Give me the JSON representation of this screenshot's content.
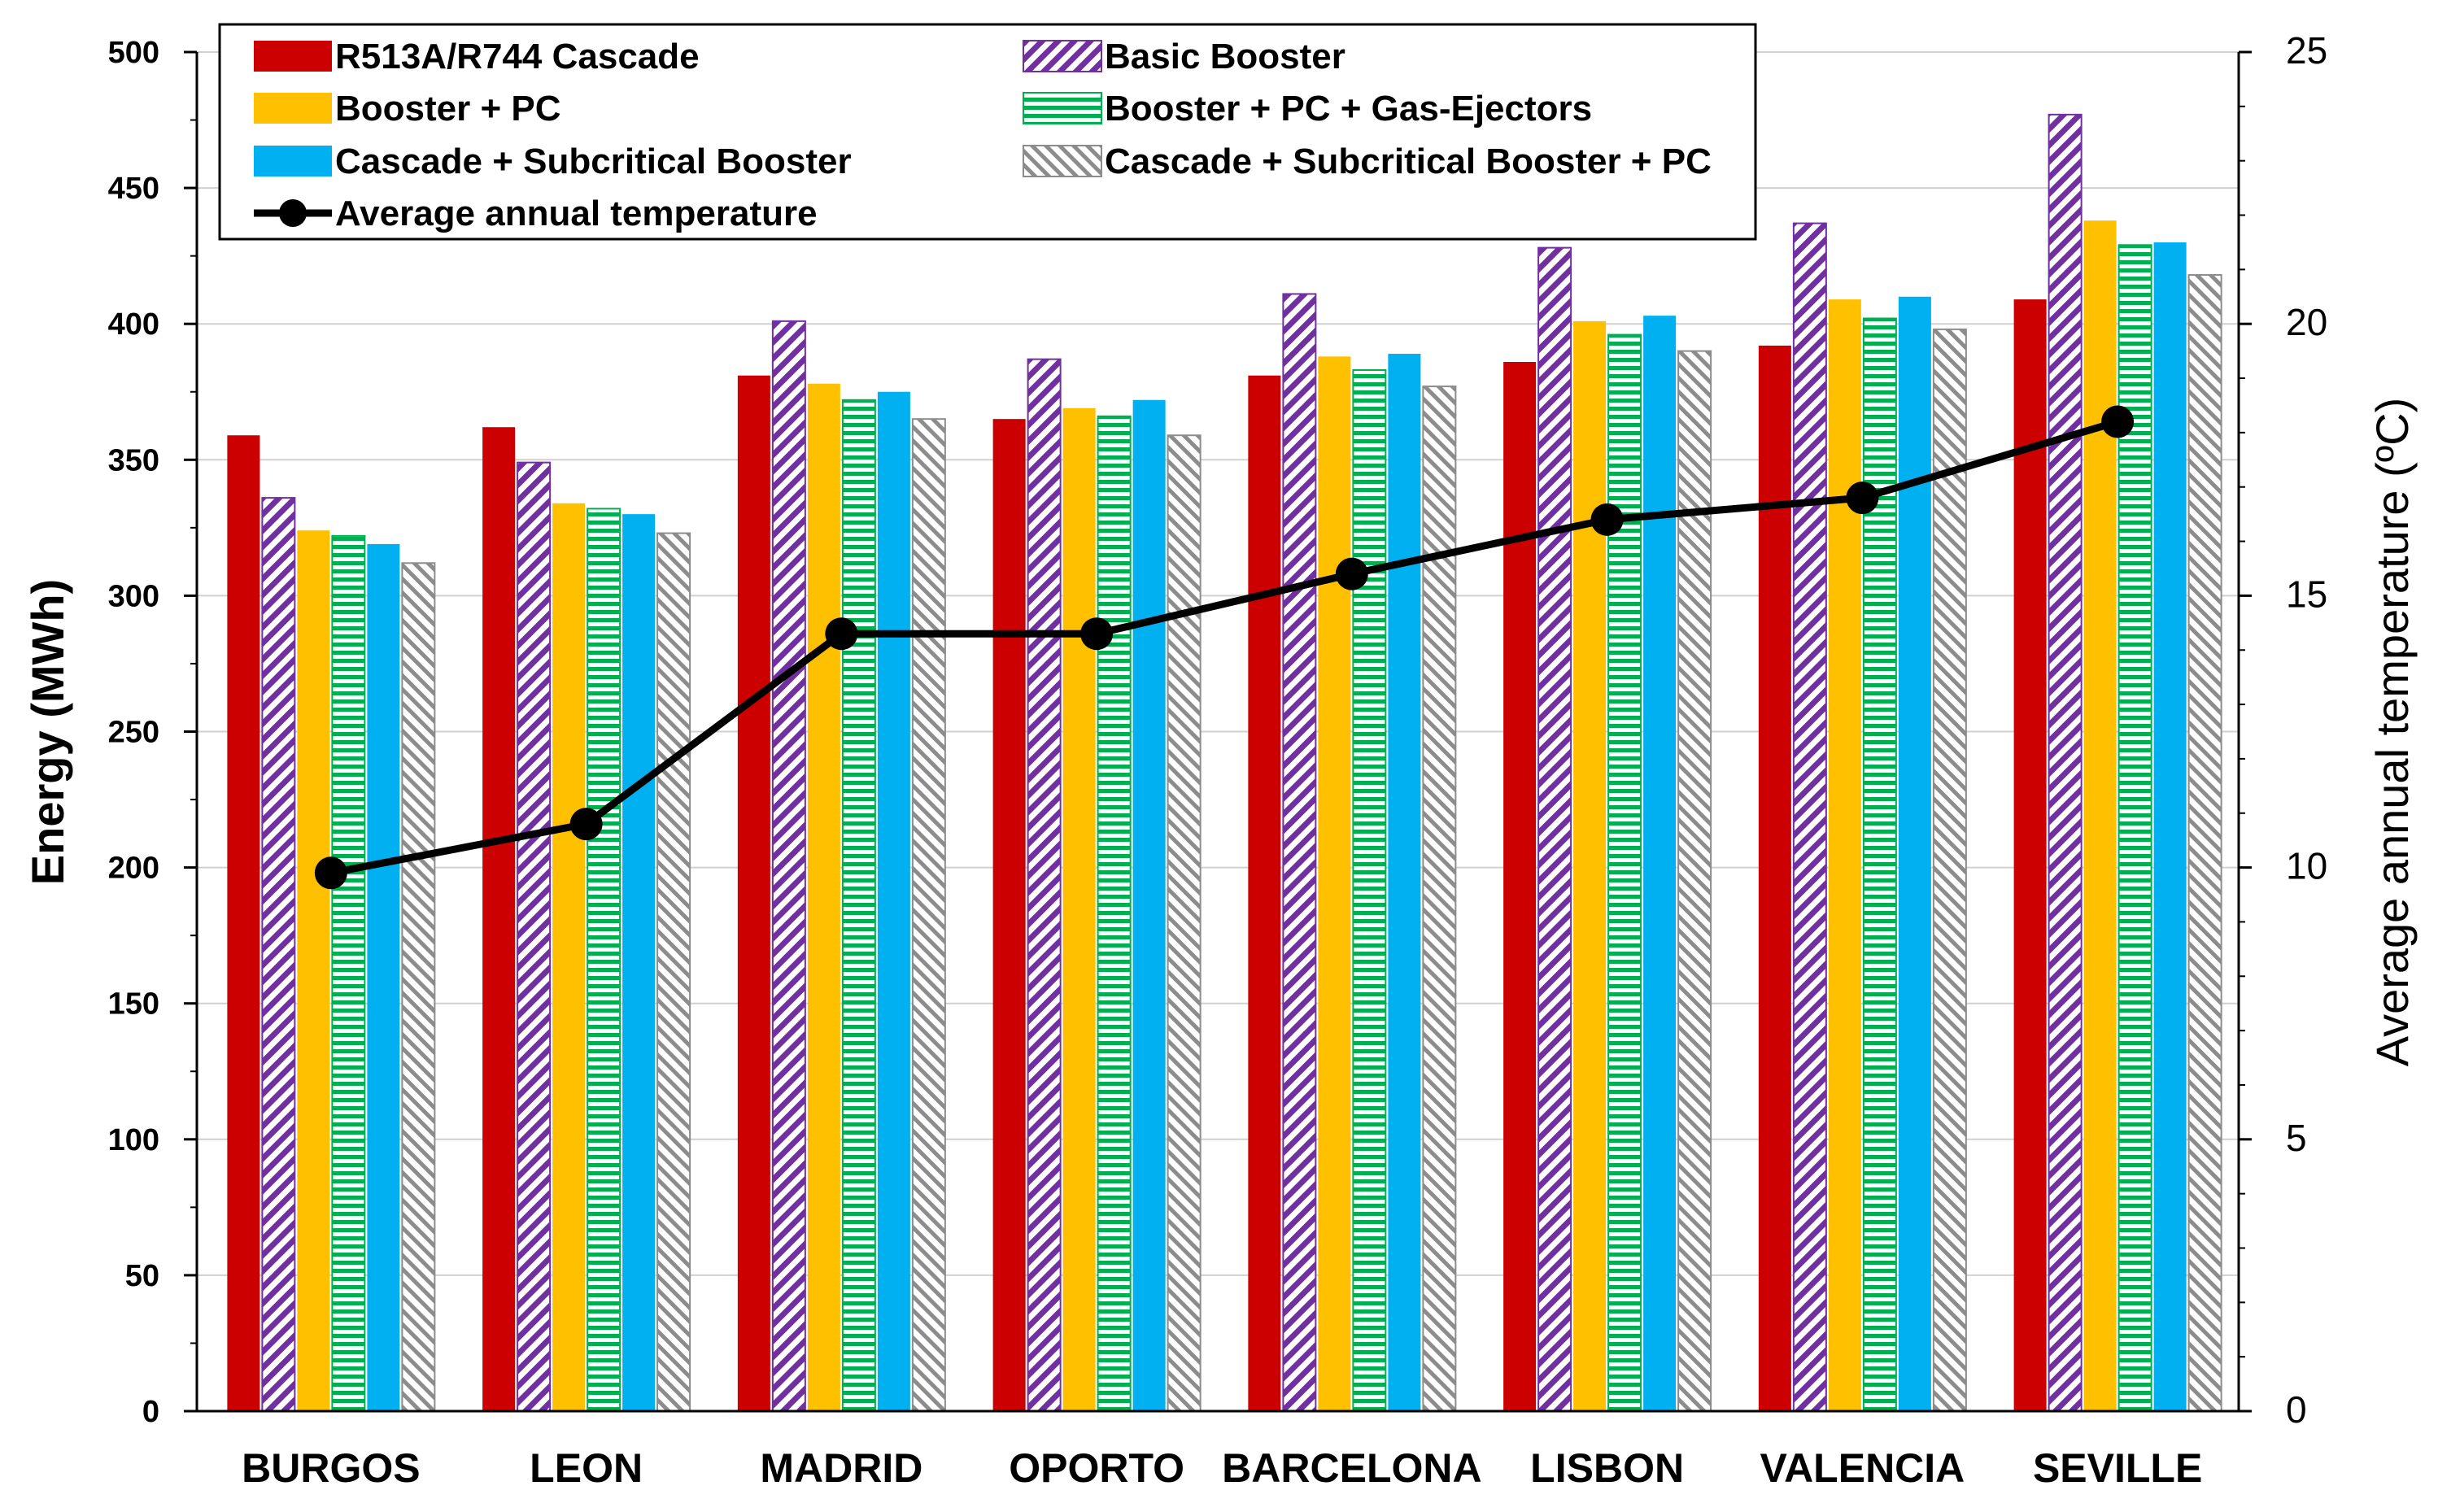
{
  "chart_data": {
    "type": "bar",
    "categories": [
      "BURGOS",
      "LEON",
      "MADRID",
      "OPORTO",
      "BARCELONA",
      "LISBON",
      "VALENCIA",
      "SEVILLE"
    ],
    "series": [
      {
        "name": "R513A/R744 Cascade",
        "color": "#cc0000",
        "pattern": "solid",
        "values": [
          359,
          362,
          381,
          365,
          381,
          386,
          392,
          409
        ]
      },
      {
        "name": "Basic Booster",
        "color": "#7030a0",
        "pattern": "diagonal",
        "values": [
          336,
          349,
          401,
          387,
          411,
          428,
          437,
          477
        ]
      },
      {
        "name": "Booster + PC",
        "color": "#ffc000",
        "pattern": "solid",
        "values": [
          324,
          334,
          378,
          369,
          388,
          401,
          409,
          438
        ]
      },
      {
        "name": "Booster + PC + Gas-Ejectors",
        "color": "#00b050",
        "pattern": "horizontal",
        "values": [
          322,
          332,
          372,
          366,
          383,
          396,
          402,
          429
        ]
      },
      {
        "name": "Cascade + Subcritical Booster",
        "color": "#00b0f0",
        "pattern": "solid",
        "values": [
          319,
          330,
          375,
          372,
          389,
          403,
          410,
          430
        ]
      },
      {
        "name": "Cascade + Subcritical Booster + PC",
        "color": "#a6a6a6",
        "pattern": "diagonal-light",
        "values": [
          312,
          323,
          365,
          359,
          377,
          390,
          398,
          418
        ]
      }
    ],
    "line_series": {
      "name": "Average annual temperature",
      "color": "#000000",
      "axis": "right",
      "values": [
        9.9,
        10.8,
        14.3,
        14.3,
        15.4,
        16.4,
        16.8,
        18.2
      ]
    },
    "ylabel": "Energy (MWh)",
    "ylabel_right": "Average annual temperature (ºC)",
    "ylim": [
      0,
      500
    ],
    "ylim_right": [
      0,
      25
    ],
    "yticks": [
      0,
      50,
      100,
      150,
      200,
      250,
      300,
      350,
      400,
      450,
      500
    ],
    "yticks_right": [
      0,
      5,
      10,
      15,
      20,
      25
    ],
    "grid": true,
    "legend_position": "top-left"
  }
}
